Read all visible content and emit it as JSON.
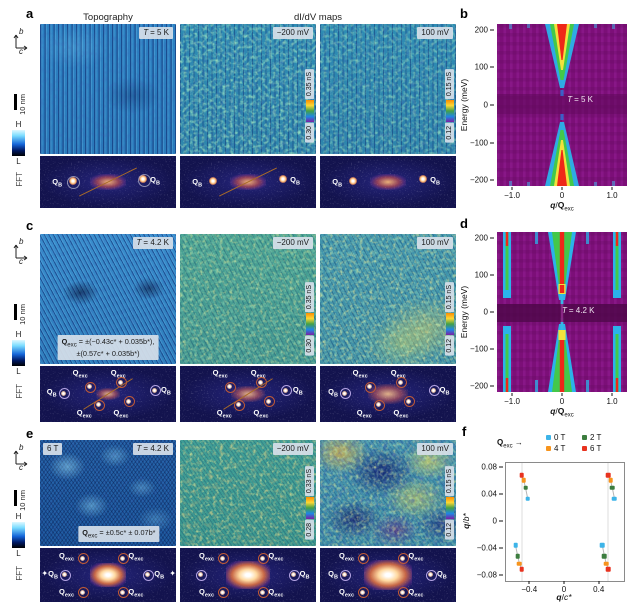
{
  "letters": {
    "a": "a",
    "b": "b",
    "c": "c",
    "d": "d",
    "e": "e",
    "f": "f"
  },
  "headers": {
    "topography": "Topography",
    "didv_maps": "dI/dV maps"
  },
  "sidebar": {
    "axis_vertical": "b",
    "axis_horizontal": "c",
    "scalebar": "10 nm",
    "colorbar_high": "H",
    "colorbar_low": "L",
    "fft_row": "FFT"
  },
  "labels": {
    "q": "Q",
    "sub_bragg": "B",
    "sub_exc": "exc",
    "temp_symbol": "T"
  },
  "icons": {
    "sparkle": "✦",
    "arrow_right": "→"
  },
  "panel_a": {
    "temp_rest": "= 5 K",
    "map1_bias": "−200 mV",
    "map2_bias": "100 mV",
    "map1_cbar_max": "0.35 nS",
    "map1_cbar_min": "0.30",
    "map2_cbar_max": "0.15 nS",
    "map2_cbar_min": "0.12"
  },
  "panel_c": {
    "temp_rest": "= 4.2 K",
    "map1_bias": "−200 mV",
    "map2_bias": "100 mV",
    "map1_cbar_max": "0.35 nS",
    "map1_cbar_min": "0.30",
    "map2_cbar_max": "0.15 nS",
    "map2_cbar_min": "0.12",
    "formula_eq": "= ±(−0.43c* + 0.035b*),",
    "formula_line2": "±(0.57c* + 0.035b*)"
  },
  "panel_e": {
    "field": "6 T",
    "temp_rest": "= 4.2 K",
    "map1_bias": "−200 mV",
    "map2_bias": "100 mV",
    "map1_cbar_max": "0.33 nS",
    "map1_cbar_min": "0.28",
    "map2_cbar_max": "0.15 nS",
    "map2_cbar_min": "0.12",
    "formula_eq": "= ±0.5c* ± 0.07b*"
  },
  "panel_b": {
    "temp_rest": "= 5 K",
    "chart_data": {
      "type": "heatmap",
      "annotation": "T = 5 K",
      "ylabel": "Energy (meV)",
      "xlabel": "q/Q_exc",
      "xlabel_parts": {
        "num": "q",
        "sep": "/",
        "den": "Q",
        "sub": "exc"
      },
      "ylim": [
        -215,
        215
      ],
      "xlim": [
        -1.3,
        1.3
      ],
      "yticks": [
        {
          "v": 200,
          "label": "200"
        },
        {
          "v": 100,
          "label": "100"
        },
        {
          "v": 0,
          "label": "0"
        },
        {
          "v": -100,
          "label": "−100"
        },
        {
          "v": -200,
          "label": "−200"
        }
      ],
      "xticks": [
        {
          "v": -1,
          "label": "−1.0"
        },
        {
          "v": 0,
          "label": "0"
        },
        {
          "v": 1,
          "label": "1.0"
        }
      ],
      "description": "Purple intensity map with a single bright dispersive column at q = 0: red core surrounded by yellow, green and cyan, widest at ±200 meV and vanishing toward 0 meV."
    }
  },
  "panel_d": {
    "temp_rest": "= 4.2 K",
    "chart_data": {
      "type": "heatmap",
      "annotation": "T = 4.2 K",
      "ylabel": "Energy (meV)",
      "xlabel": "q/Q_exc",
      "xlabel_parts": {
        "num": "q",
        "sep": "/",
        "den": "Q",
        "sub": "exc"
      },
      "ylim": [
        -215,
        215
      ],
      "xlim": [
        -1.3,
        1.3
      ],
      "yticks": [
        {
          "v": 200,
          "label": "200"
        },
        {
          "v": 100,
          "label": "100"
        },
        {
          "v": 0,
          "label": "0"
        },
        {
          "v": -100,
          "label": "−100"
        },
        {
          "v": -200,
          "label": "−200"
        }
      ],
      "xticks": [
        {
          "v": -1,
          "label": "−1.0"
        },
        {
          "v": 0,
          "label": "0"
        },
        {
          "v": 1,
          "label": "1.0"
        }
      ],
      "description": "Purple intensity map with bright columns at q = 0 and q = ±1.0 (red cores with green/cyan halos) extending from ±200 meV toward zero energy; intensity suppressed in a dark horizontal band around 0 meV."
    }
  },
  "panel_f": {
    "chart_data": {
      "type": "scatter",
      "legend_title": "Q_exc",
      "xlabel": "q/c*",
      "ylabel": "q/b*",
      "xlabel_parts": {
        "num": "q",
        "sep": "/",
        "den": "c*"
      },
      "ylabel_parts": {
        "num": "q",
        "sep": "/",
        "den": "b*"
      },
      "xlim": [
        -0.68,
        0.68
      ],
      "ylim": [
        -0.088,
        0.088
      ],
      "xticks": [
        {
          "v": -0.4,
          "label": "−0.4"
        },
        {
          "v": 0,
          "label": "0"
        },
        {
          "v": 0.4,
          "label": "0.4"
        }
      ],
      "yticks": [
        {
          "v": 0.08,
          "label": "0.08"
        },
        {
          "v": 0.04,
          "label": "0.04"
        },
        {
          "v": 0,
          "label": "0"
        },
        {
          "v": -0.04,
          "label": "−0.04"
        },
        {
          "v": -0.08,
          "label": "−0.08"
        }
      ],
      "gridlines_x": [
        -0.5,
        0.5
      ],
      "series": [
        {
          "name": "0 T",
          "color": "#3db4e8",
          "points": [
            [
              -0.43,
              0.035
            ],
            [
              0.57,
              0.035
            ],
            [
              -0.57,
              -0.035
            ],
            [
              0.43,
              -0.035
            ]
          ]
        },
        {
          "name": "2 T",
          "color": "#3c7d3f",
          "points": [
            [
              -0.455,
              0.051
            ],
            [
              0.545,
              0.051
            ],
            [
              -0.545,
              -0.051
            ],
            [
              0.455,
              -0.051
            ]
          ]
        },
        {
          "name": "4 T",
          "color": "#f7941d",
          "points": [
            [
              -0.475,
              0.062
            ],
            [
              0.525,
              0.062
            ],
            [
              -0.525,
              -0.062
            ],
            [
              0.475,
              -0.062
            ]
          ]
        },
        {
          "name": "6 T",
          "color": "#e8321f",
          "points": [
            [
              -0.5,
              0.07
            ],
            [
              0.5,
              0.07
            ],
            [
              -0.5,
              -0.07
            ],
            [
              0.5,
              -0.07
            ]
          ]
        }
      ]
    }
  }
}
